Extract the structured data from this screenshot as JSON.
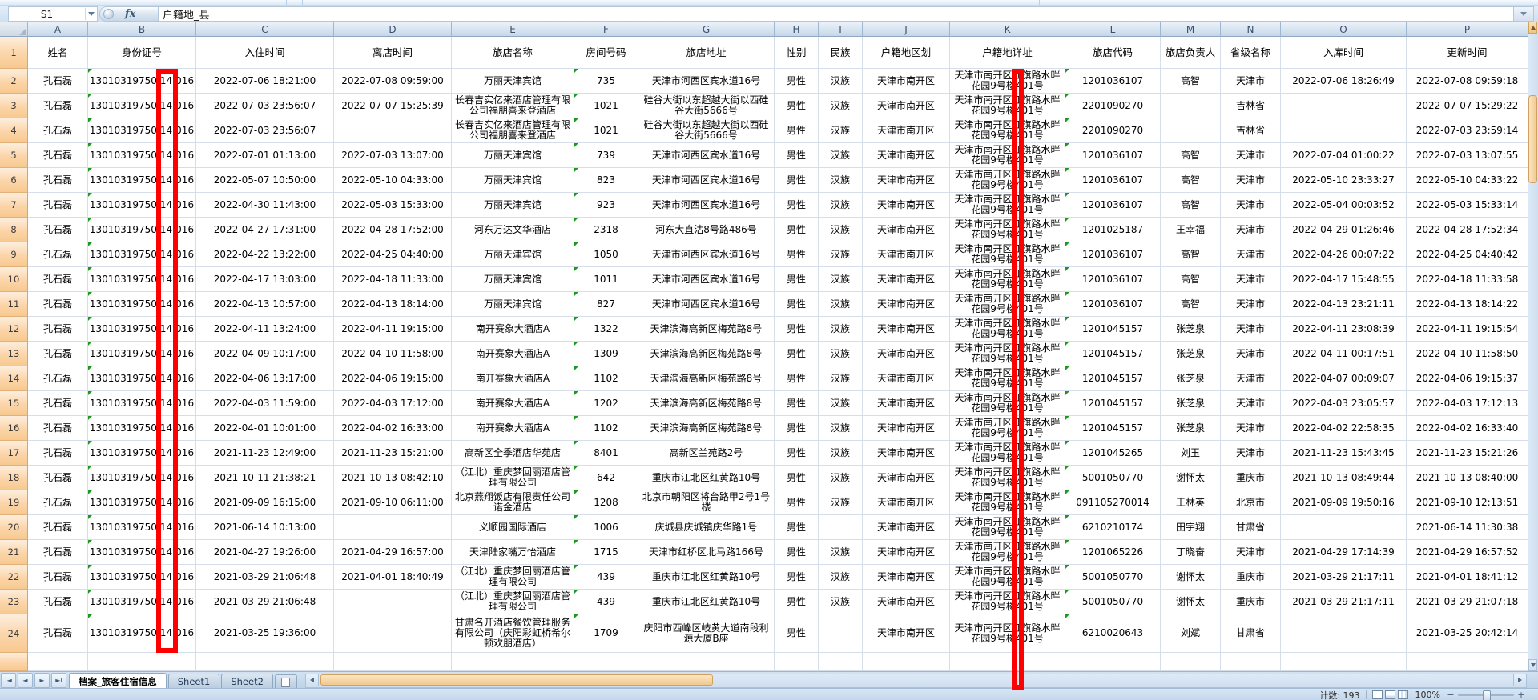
{
  "formula_bar": {
    "name_box": "S1",
    "fx_label": "fx",
    "formula": "户籍地_县"
  },
  "grid": {
    "column_letters": [
      "A",
      "B",
      "C",
      "D",
      "E",
      "F",
      "G",
      "H",
      "I",
      "J",
      "K",
      "L",
      "M",
      "N",
      "O",
      "P"
    ],
    "header_row": [
      "姓名",
      "身份证号",
      "入住时间",
      "离店时间",
      "旅店名称",
      "房间号码",
      "旅店地址",
      "性别",
      "民族",
      "户籍地区划",
      "户籍地详址",
      "旅店代码",
      "旅店负责人",
      "省级名称",
      "入库时间",
      "更新时间"
    ],
    "column_keys": [
      "name",
      "id",
      "checkin",
      "checkout",
      "hotel",
      "room",
      "hotel_addr",
      "gender",
      "ethnic",
      "region",
      "res_addr",
      "hotel_code",
      "manager",
      "province",
      "db_time",
      "update_time"
    ],
    "flag_columns": [
      "id",
      "room",
      "hotel_code"
    ],
    "rows": [
      {
        "num": "2",
        "name": "孔石磊",
        "id": [
          "13010319750",
          "14",
          "016"
        ],
        "checkin": "2022-07-06 18:21:00",
        "checkout": "2022-07-08 09:59:00",
        "hotel": "万丽天津宾馆",
        "room": "735",
        "hotel_addr": "天津市河西区宾水道16号",
        "gender": "男性",
        "ethnic": "汉族",
        "region": "天津市南开区",
        "res_addr": "天津市南开区红旗路水畔\n花园9号楼401号",
        "hotel_code": "1201036107",
        "manager": "高智",
        "province": "天津市",
        "db_time": "2022-07-06 18:26:49",
        "update_time": "2022-07-08 09:59:18"
      },
      {
        "num": "3",
        "name": "孔石磊",
        "id": [
          "13010319750",
          "14",
          "016"
        ],
        "checkin": "2022-07-03 23:56:07",
        "checkout": "2022-07-07 15:25:39",
        "hotel": "长春吉实亿来酒店管理有限公司福朋喜来登酒店",
        "room": "1021",
        "hotel_addr": "硅谷大街以东超越大街以西硅谷大街5666号",
        "gender": "男性",
        "ethnic": "汉族",
        "region": "天津市南开区",
        "res_addr": "天津市南开区红旗路水畔\n花园9号楼401号",
        "hotel_code": "2201090270",
        "manager": "",
        "province": "吉林省",
        "db_time": "",
        "update_time": "2022-07-07 15:29:22"
      },
      {
        "num": "4",
        "name": "孔石磊",
        "id": [
          "13010319750",
          "14",
          "016"
        ],
        "checkin": "2022-07-03 23:56:07",
        "checkout": "",
        "hotel": "长春吉实亿来酒店管理有限公司福朋喜来登酒店",
        "room": "1021",
        "hotel_addr": "硅谷大街以东超越大街以西硅谷大街5666号",
        "gender": "男性",
        "ethnic": "汉族",
        "region": "天津市南开区",
        "res_addr": "天津市南开区红旗路水畔\n花园9号楼401号",
        "hotel_code": "2201090270",
        "manager": "",
        "province": "吉林省",
        "db_time": "",
        "update_time": "2022-07-03 23:59:14"
      },
      {
        "num": "5",
        "name": "孔石磊",
        "id": [
          "13010319750",
          "14",
          "016"
        ],
        "checkin": "2022-07-01 01:13:00",
        "checkout": "2022-07-03 13:07:00",
        "hotel": "万丽天津宾馆",
        "room": "739",
        "hotel_addr": "天津市河西区宾水道16号",
        "gender": "男性",
        "ethnic": "汉族",
        "region": "天津市南开区",
        "res_addr": "天津市南开区红旗路水畔\n花园9号楼401号",
        "hotel_code": "1201036107",
        "manager": "高智",
        "province": "天津市",
        "db_time": "2022-07-04 01:00:22",
        "update_time": "2022-07-03 13:07:55"
      },
      {
        "num": "6",
        "name": "孔石磊",
        "id": [
          "13010319750",
          "14",
          "016"
        ],
        "checkin": "2022-05-07 10:50:00",
        "checkout": "2022-05-10 04:33:00",
        "hotel": "万丽天津宾馆",
        "room": "823",
        "hotel_addr": "天津市河西区宾水道16号",
        "gender": "男性",
        "ethnic": "汉族",
        "region": "天津市南开区",
        "res_addr": "天津市南开区红旗路水畔\n花园9号楼401号",
        "hotel_code": "1201036107",
        "manager": "高智",
        "province": "天津市",
        "db_time": "2022-05-10 23:33:27",
        "update_time": "2022-05-10 04:33:22"
      },
      {
        "num": "7",
        "name": "孔石磊",
        "id": [
          "13010319750",
          "14",
          "016"
        ],
        "checkin": "2022-04-30 11:43:00",
        "checkout": "2022-05-03 15:33:00",
        "hotel": "万丽天津宾馆",
        "room": "923",
        "hotel_addr": "天津市河西区宾水道16号",
        "gender": "男性",
        "ethnic": "汉族",
        "region": "天津市南开区",
        "res_addr": "天津市南开区红旗路水畔\n花园9号楼401号",
        "hotel_code": "1201036107",
        "manager": "高智",
        "province": "天津市",
        "db_time": "2022-05-04 00:03:52",
        "update_time": "2022-05-03 15:33:14"
      },
      {
        "num": "8",
        "name": "孔石磊",
        "id": [
          "13010319750",
          "14",
          "016"
        ],
        "checkin": "2022-04-27 17:31:00",
        "checkout": "2022-04-28 17:52:00",
        "hotel": "河东万达文华酒店",
        "room": "2318",
        "hotel_addr": "河东大直沽8号路486号",
        "gender": "男性",
        "ethnic": "汉族",
        "region": "天津市南开区",
        "res_addr": "天津市南开区红旗路水畔\n花园9号楼401号",
        "hotel_code": "1201025187",
        "manager": "王幸福",
        "province": "天津市",
        "db_time": "2022-04-29 01:26:46",
        "update_time": "2022-04-28 17:52:34"
      },
      {
        "num": "9",
        "name": "孔石磊",
        "id": [
          "13010319750",
          "14",
          "016"
        ],
        "checkin": "2022-04-22 13:22:00",
        "checkout": "2022-04-25 04:40:00",
        "hotel": "万丽天津宾馆",
        "room": "1050",
        "hotel_addr": "天津市河西区宾水道16号",
        "gender": "男性",
        "ethnic": "汉族",
        "region": "天津市南开区",
        "res_addr": "天津市南开区红旗路水畔\n花园9号楼401号",
        "hotel_code": "1201036107",
        "manager": "高智",
        "province": "天津市",
        "db_time": "2022-04-26 00:07:22",
        "update_time": "2022-04-25 04:40:42"
      },
      {
        "num": "10",
        "name": "孔石磊",
        "id": [
          "13010319750",
          "14",
          "016"
        ],
        "checkin": "2022-04-17 13:03:00",
        "checkout": "2022-04-18 11:33:00",
        "hotel": "万丽天津宾馆",
        "room": "1011",
        "hotel_addr": "天津市河西区宾水道16号",
        "gender": "男性",
        "ethnic": "汉族",
        "region": "天津市南开区",
        "res_addr": "天津市南开区红旗路水畔\n花园9号楼401号",
        "hotel_code": "1201036107",
        "manager": "高智",
        "province": "天津市",
        "db_time": "2022-04-17 15:48:55",
        "update_time": "2022-04-18 11:33:58"
      },
      {
        "num": "11",
        "name": "孔石磊",
        "id": [
          "13010319750",
          "14",
          "016"
        ],
        "checkin": "2022-04-13 10:57:00",
        "checkout": "2022-04-13 18:14:00",
        "hotel": "万丽天津宾馆",
        "room": "827",
        "hotel_addr": "天津市河西区宾水道16号",
        "gender": "男性",
        "ethnic": "汉族",
        "region": "天津市南开区",
        "res_addr": "天津市南开区红旗路水畔\n花园9号楼401号",
        "hotel_code": "1201036107",
        "manager": "高智",
        "province": "天津市",
        "db_time": "2022-04-13 23:21:11",
        "update_time": "2022-04-13 18:14:22"
      },
      {
        "num": "12",
        "name": "孔石磊",
        "id": [
          "13010319750",
          "14",
          "016"
        ],
        "checkin": "2022-04-11 13:24:00",
        "checkout": "2022-04-11 19:15:00",
        "hotel": "南开赛象大酒店A",
        "room": "1322",
        "hotel_addr": "天津滨海高新区梅苑路8号",
        "gender": "男性",
        "ethnic": "汉族",
        "region": "天津市南开区",
        "res_addr": "天津市南开区红旗路水畔\n花园9号楼401号",
        "hotel_code": "1201045157",
        "manager": "张芝泉",
        "province": "天津市",
        "db_time": "2022-04-11 23:08:39",
        "update_time": "2022-04-11 19:15:54"
      },
      {
        "num": "13",
        "name": "孔石磊",
        "id": [
          "13010319750",
          "14",
          "016"
        ],
        "checkin": "2022-04-09 10:17:00",
        "checkout": "2022-04-10 11:58:00",
        "hotel": "南开赛象大酒店A",
        "room": "1309",
        "hotel_addr": "天津滨海高新区梅苑路8号",
        "gender": "男性",
        "ethnic": "汉族",
        "region": "天津市南开区",
        "res_addr": "天津市南开区红旗路水畔\n花园9号楼401号",
        "hotel_code": "1201045157",
        "manager": "张芝泉",
        "province": "天津市",
        "db_time": "2022-04-11 00:17:51",
        "update_time": "2022-04-10 11:58:50"
      },
      {
        "num": "14",
        "name": "孔石磊",
        "id": [
          "13010319750",
          "14",
          "016"
        ],
        "checkin": "2022-04-06 13:17:00",
        "checkout": "2022-04-06 19:15:00",
        "hotel": "南开赛象大酒店A",
        "room": "1102",
        "hotel_addr": "天津滨海高新区梅苑路8号",
        "gender": "男性",
        "ethnic": "汉族",
        "region": "天津市南开区",
        "res_addr": "天津市南开区红旗路水畔\n花园9号楼401号",
        "hotel_code": "1201045157",
        "manager": "张芝泉",
        "province": "天津市",
        "db_time": "2022-04-07 00:09:07",
        "update_time": "2022-04-06 19:15:37"
      },
      {
        "num": "15",
        "name": "孔石磊",
        "id": [
          "13010319750",
          "14",
          "016"
        ],
        "checkin": "2022-04-03 11:59:00",
        "checkout": "2022-04-03 17:12:00",
        "hotel": "南开赛象大酒店A",
        "room": "1202",
        "hotel_addr": "天津滨海高新区梅苑路8号",
        "gender": "男性",
        "ethnic": "汉族",
        "region": "天津市南开区",
        "res_addr": "天津市南开区红旗路水畔\n花园9号楼401号",
        "hotel_code": "1201045157",
        "manager": "张芝泉",
        "province": "天津市",
        "db_time": "2022-04-03 23:05:57",
        "update_time": "2022-04-03 17:12:13"
      },
      {
        "num": "16",
        "name": "孔石磊",
        "id": [
          "13010319750",
          "14",
          "016"
        ],
        "checkin": "2022-04-01 10:01:00",
        "checkout": "2022-04-02 16:33:00",
        "hotel": "南开赛象大酒店A",
        "room": "1102",
        "hotel_addr": "天津滨海高新区梅苑路8号",
        "gender": "男性",
        "ethnic": "汉族",
        "region": "天津市南开区",
        "res_addr": "天津市南开区红旗路水畔\n花园9号楼401号",
        "hotel_code": "1201045157",
        "manager": "张芝泉",
        "province": "天津市",
        "db_time": "2022-04-02 22:58:35",
        "update_time": "2022-04-02 16:33:40"
      },
      {
        "num": "17",
        "name": "孔石磊",
        "id": [
          "13010319750",
          "14",
          "016"
        ],
        "checkin": "2021-11-23 12:49:00",
        "checkout": "2021-11-23 15:21:00",
        "hotel": "高新区全季酒店华苑店",
        "room": "8401",
        "hotel_addr": "高新区兰苑路2号",
        "gender": "男性",
        "ethnic": "汉族",
        "region": "天津市南开区",
        "res_addr": "天津市南开区红旗路水畔\n花园9号楼401号",
        "hotel_code": "1201045265",
        "manager": "刘玉",
        "province": "天津市",
        "db_time": "2021-11-23 15:43:45",
        "update_time": "2021-11-23 15:21:26"
      },
      {
        "num": "18",
        "name": "孔石磊",
        "id": [
          "13010319750",
          "14",
          "016"
        ],
        "checkin": "2021-10-11 21:38:21",
        "checkout": "2021-10-13 08:42:10",
        "hotel": "（江北）重庆梦回丽酒店管理有限公司",
        "room": "642",
        "hotel_addr": "重庆市江北区红黄路10号",
        "gender": "男性",
        "ethnic": "汉族",
        "region": "天津市南开区",
        "res_addr": "天津市南开区红旗路水畔\n花园9号楼401号",
        "hotel_code": "5001050770",
        "manager": "谢怀太",
        "province": "重庆市",
        "db_time": "2021-10-13 08:49:44",
        "update_time": "2021-10-13 08:40:00"
      },
      {
        "num": "19",
        "name": "孔石磊",
        "id": [
          "13010319750",
          "14",
          "016"
        ],
        "checkin": "2021-09-09 16:15:00",
        "checkout": "2021-09-10 06:11:00",
        "hotel": "北京燕翔饭店有限责任公司诺金酒店",
        "room": "1208",
        "hotel_addr": "北京市朝阳区将台路甲2号1号楼",
        "gender": "男性",
        "ethnic": "汉族",
        "region": "天津市南开区",
        "res_addr": "天津市南开区红旗路水畔\n花园9号楼401号",
        "hotel_code": "091105270014",
        "manager": "王林英",
        "province": "北京市",
        "db_time": "2021-09-09 19:50:16",
        "update_time": "2021-09-10 12:13:51"
      },
      {
        "num": "20",
        "name": "孔石磊",
        "id": [
          "13010319750",
          "14",
          "016"
        ],
        "checkin": "2021-06-14 10:13:00",
        "checkout": "",
        "hotel": "义顺园国际酒店",
        "room": "1006",
        "hotel_addr": "庆城县庆城镇庆华路1号",
        "gender": "男性",
        "ethnic": "",
        "region": "天津市南开区",
        "res_addr": "天津市南开区红旗路水畔\n花园9号楼401号",
        "hotel_code": "6210210174",
        "manager": "田宇翔",
        "province": "甘肃省",
        "db_time": "",
        "update_time": "2021-06-14 11:30:38"
      },
      {
        "num": "21",
        "name": "孔石磊",
        "id": [
          "13010319750",
          "14",
          "016"
        ],
        "checkin": "2021-04-27 19:26:00",
        "checkout": "2021-04-29 16:57:00",
        "hotel": "天津陆家嘴万怡酒店",
        "room": "1715",
        "hotel_addr": "天津市红桥区北马路166号",
        "gender": "男性",
        "ethnic": "汉族",
        "region": "天津市南开区",
        "res_addr": "天津市南开区红旗路水畔\n花园9号楼401号",
        "hotel_code": "1201065226",
        "manager": "丁晓奋",
        "province": "天津市",
        "db_time": "2021-04-29 17:14:39",
        "update_time": "2021-04-29 16:57:52"
      },
      {
        "num": "22",
        "name": "孔石磊",
        "id": [
          "13010319750",
          "14",
          "016"
        ],
        "checkin": "2021-03-29 21:06:48",
        "checkout": "2021-04-01 18:40:49",
        "hotel": "（江北）重庆梦回丽酒店管理有限公司",
        "room": "439",
        "hotel_addr": "重庆市江北区红黄路10号",
        "gender": "男性",
        "ethnic": "汉族",
        "region": "天津市南开区",
        "res_addr": "天津市南开区红旗路水畔\n花园9号楼401号",
        "hotel_code": "5001050770",
        "manager": "谢怀太",
        "province": "重庆市",
        "db_time": "2021-03-29 21:17:11",
        "update_time": "2021-04-01 18:41:12"
      },
      {
        "num": "23",
        "name": "孔石磊",
        "id": [
          "13010319750",
          "14",
          "016"
        ],
        "checkin": "2021-03-29 21:06:48",
        "checkout": "",
        "hotel": "（江北）重庆梦回丽酒店管理有限公司",
        "room": "439",
        "hotel_addr": "重庆市江北区红黄路10号",
        "gender": "男性",
        "ethnic": "汉族",
        "region": "天津市南开区",
        "res_addr": "天津市南开区红旗路水畔\n花园9号楼401号",
        "hotel_code": "5001050770",
        "manager": "谢怀太",
        "province": "重庆市",
        "db_time": "2021-03-29 21:17:11",
        "update_time": "2021-03-29 21:07:18"
      },
      {
        "num": "24",
        "name": "孔石磊",
        "id": [
          "13010319750",
          "14",
          "016"
        ],
        "checkin": "2021-03-25 19:36:00",
        "checkout": "",
        "hotel": "甘肃名开酒店餐饮管理服务有限公司（庆阳彩虹桥希尔顿欢朋酒店）",
        "room": "1709",
        "hotel_addr": "庆阳市西峰区岐黄大道南段利源大厦B座",
        "gender": "男性",
        "ethnic": "",
        "region": "天津市南开区",
        "res_addr": "天津市南开区红旗路水畔\n花园9号楼401号",
        "hotel_code": "6210020643",
        "manager": "刘斌",
        "province": "甘肃省",
        "db_time": "",
        "update_time": "2021-03-25 20:42:14"
      }
    ]
  },
  "tab_bar": {
    "nav_icons": [
      "Ι◄",
      "◄",
      "►",
      "►Ι"
    ],
    "tabs": [
      "档案_旅客住宿信息",
      "Sheet1",
      "Sheet2"
    ],
    "active_tab": "档案_旅客住宿信息"
  },
  "status_bar": {
    "count_text": "计数: 193",
    "zoom_level": "100%",
    "zoom_minus": "−",
    "zoom_plus": "+"
  },
  "colors": {
    "highlight_red": "#fe0000",
    "flag_green": "#1d9a1d",
    "row_header_peach": "#fbd5a9",
    "chrome_blue": "#cfe0f1"
  }
}
